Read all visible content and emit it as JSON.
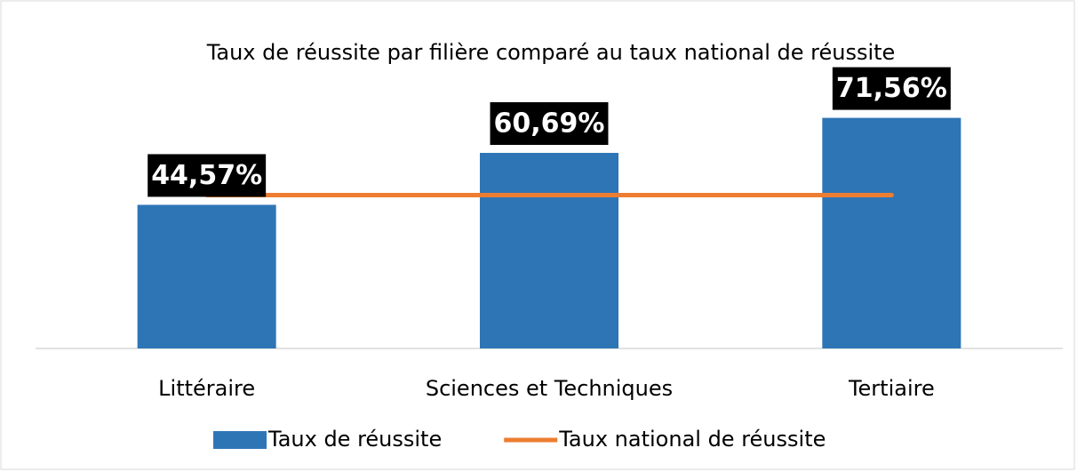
{
  "chart_data": {
    "type": "bar",
    "title": "Taux de réussite par filière comparé au taux national de réussite",
    "categories": [
      "Littéraire",
      "Sciences et Techniques",
      "Tertiaire"
    ],
    "series": [
      {
        "name": "Taux de réussite",
        "type": "bar",
        "color": "#2e75b6",
        "values": [
          44.57,
          60.69,
          71.56
        ],
        "value_labels": [
          "44,57%",
          "60,69%",
          "71,56%"
        ]
      },
      {
        "name": "Taux national de réussite",
        "type": "line",
        "color": "#ed7d31",
        "values": [
          47.6,
          47.6,
          47.6
        ]
      }
    ],
    "ylim": [
      0,
      80
    ]
  }
}
